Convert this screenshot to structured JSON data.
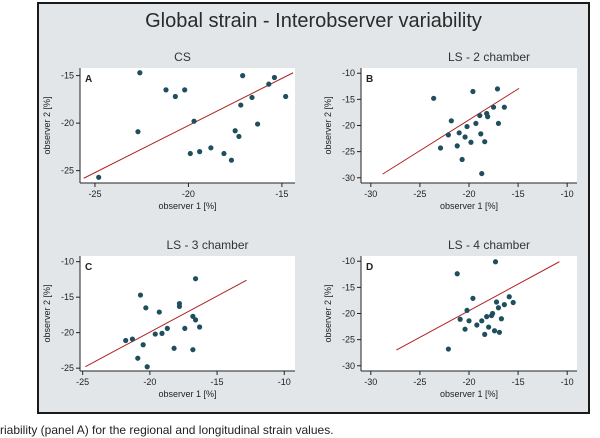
{
  "figure_title": "Global strain - Interobserver variability",
  "caption": "riability (panel A) for the regional and longitudinal strain values.",
  "colors": {
    "frame_bg": "#e3e6e8",
    "panel_bg": "#ffffff",
    "point": "#1f4e5f",
    "line": "#b22222"
  },
  "chart_data": [
    {
      "type": "scatter",
      "panel_label": "A",
      "title": "CS",
      "xlabel": "observer 1 [%]",
      "ylabel": "observer 2 [%]",
      "xlim": [
        -25.8,
        -14.3
      ],
      "ylim": [
        -26.3,
        -14.2
      ],
      "xticks": [
        -25,
        -20,
        -15
      ],
      "yticks": [
        -25,
        -20,
        -15
      ],
      "grid": false,
      "fit_line": {
        "from": [
          -25.6,
          -25.8
        ],
        "to": [
          -14.4,
          -14.7
        ]
      },
      "points": [
        [
          -24.8,
          -25.7
        ],
        [
          -22.6,
          -14.7
        ],
        [
          -22.7,
          -20.9
        ],
        [
          -21.2,
          -16.5
        ],
        [
          -20.7,
          -17.2
        ],
        [
          -20.2,
          -16.5
        ],
        [
          -19.7,
          -19.8
        ],
        [
          -19.9,
          -23.2
        ],
        [
          -19.4,
          -23.0
        ],
        [
          -18.8,
          -22.6
        ],
        [
          -18.1,
          -23.2
        ],
        [
          -17.7,
          -23.9
        ],
        [
          -17.5,
          -20.8
        ],
        [
          -17.2,
          -18.1
        ],
        [
          -17.3,
          -21.4
        ],
        [
          -17.1,
          -15.0
        ],
        [
          -16.6,
          -17.3
        ],
        [
          -16.3,
          -20.1
        ],
        [
          -15.7,
          -15.9
        ],
        [
          -15.4,
          -15.2
        ],
        [
          -14.8,
          -17.2
        ]
      ]
    },
    {
      "type": "scatter",
      "panel_label": "B",
      "title": "LS - 2 chamber",
      "xlabel": "observer 1 [%]",
      "ylabel": "observer 2 [%]",
      "xlim": [
        -31,
        -9
      ],
      "ylim": [
        -31,
        -9
      ],
      "xticks": [
        -30,
        -25,
        -20,
        -15,
        -10
      ],
      "yticks": [
        -30,
        -25,
        -20,
        -15,
        -10
      ],
      "grid": false,
      "fit_line": {
        "from": [
          -28.8,
          -29.3
        ],
        "to": [
          -14.9,
          -12.9
        ]
      },
      "points": [
        [
          -23.6,
          -14.8
        ],
        [
          -22.9,
          -24.3
        ],
        [
          -22.1,
          -21.8
        ],
        [
          -21.8,
          -19.1
        ],
        [
          -21.2,
          -23.9
        ],
        [
          -21.0,
          -21.4
        ],
        [
          -20.7,
          -26.5
        ],
        [
          -20.4,
          -22.2
        ],
        [
          -20.2,
          -20.2
        ],
        [
          -19.8,
          -23.2
        ],
        [
          -19.6,
          -13.5
        ],
        [
          -19.3,
          -19.6
        ],
        [
          -18.8,
          -21.6
        ],
        [
          -18.9,
          -18.1
        ],
        [
          -18.4,
          -23.1
        ],
        [
          -18.7,
          -29.2
        ],
        [
          -18.1,
          -18.3
        ],
        [
          -18.2,
          -17.7
        ],
        [
          -17.5,
          -16.5
        ],
        [
          -17.1,
          -13.0
        ],
        [
          -17.0,
          -19.6
        ],
        [
          -16.4,
          -16.5
        ]
      ]
    },
    {
      "type": "scatter",
      "panel_label": "C",
      "title": "LS - 3 chamber",
      "xlabel": "observer 1 [%]",
      "ylabel": "observer 2 [%]",
      "xlim": [
        -25.2,
        -9.2
      ],
      "ylim": [
        -25.4,
        -9.2
      ],
      "xticks": [
        -25,
        -20,
        -15,
        -10
      ],
      "yticks": [
        -25,
        -20,
        -15,
        -10
      ],
      "grid": false,
      "fit_line": {
        "from": [
          -24.8,
          -24.8
        ],
        "to": [
          -12.8,
          -12.6
        ]
      },
      "points": [
        [
          -21.8,
          -21.1
        ],
        [
          -21.3,
          -20.9
        ],
        [
          -20.9,
          -23.6
        ],
        [
          -20.7,
          -14.7
        ],
        [
          -20.5,
          -21.7
        ],
        [
          -20.3,
          -16.5
        ],
        [
          -20.2,
          -24.8
        ],
        [
          -19.6,
          -20.2
        ],
        [
          -19.3,
          -17.1
        ],
        [
          -19.1,
          -20.1
        ],
        [
          -18.7,
          -19.4
        ],
        [
          -18.2,
          -22.2
        ],
        [
          -17.8,
          -15.9
        ],
        [
          -17.8,
          -16.3
        ],
        [
          -17.4,
          -19.4
        ],
        [
          -16.8,
          -22.4
        ],
        [
          -16.6,
          -12.4
        ],
        [
          -16.8,
          -17.7
        ],
        [
          -16.6,
          -18.2
        ],
        [
          -16.3,
          -19.2
        ]
      ]
    },
    {
      "type": "scatter",
      "panel_label": "D",
      "title": "LS - 4 chamber",
      "xlabel": "observer 1 [%]",
      "ylabel": "observer 2 [%]",
      "xlim": [
        -31,
        -9
      ],
      "ylim": [
        -31,
        -9
      ],
      "xticks": [
        -30,
        -25,
        -20,
        -15,
        -10
      ],
      "yticks": [
        -30,
        -25,
        -20,
        -15,
        -10
      ],
      "grid": false,
      "fit_line": {
        "from": [
          -27.4,
          -27.0
        ],
        "to": [
          -10.8,
          -10.1
        ]
      },
      "points": [
        [
          -22.1,
          -26.8
        ],
        [
          -21.2,
          -12.4
        ],
        [
          -20.9,
          -21.1
        ],
        [
          -20.4,
          -23.0
        ],
        [
          -20.2,
          -19.4
        ],
        [
          -20.0,
          -21.4
        ],
        [
          -19.6,
          -17.1
        ],
        [
          -19.2,
          -22.2
        ],
        [
          -18.7,
          -21.4
        ],
        [
          -18.4,
          -24.0
        ],
        [
          -18.2,
          -20.6
        ],
        [
          -18.0,
          -22.6
        ],
        [
          -17.7,
          -20.4
        ],
        [
          -17.4,
          -23.3
        ],
        [
          -17.6,
          -20.0
        ],
        [
          -17.2,
          -17.8
        ],
        [
          -17.3,
          -10.1
        ],
        [
          -17.0,
          -18.9
        ],
        [
          -16.7,
          -21.0
        ],
        [
          -16.9,
          -23.6
        ],
        [
          -16.4,
          -18.3
        ],
        [
          -15.9,
          -16.8
        ],
        [
          -15.5,
          -17.9
        ]
      ]
    }
  ]
}
